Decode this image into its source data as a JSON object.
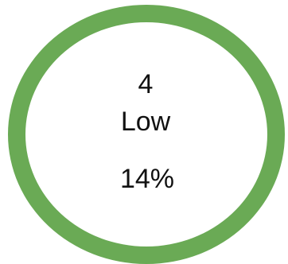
{
  "indicator": {
    "count": "4",
    "level": "Low",
    "percent": "14%",
    "ring_color": "#6aaa55"
  }
}
